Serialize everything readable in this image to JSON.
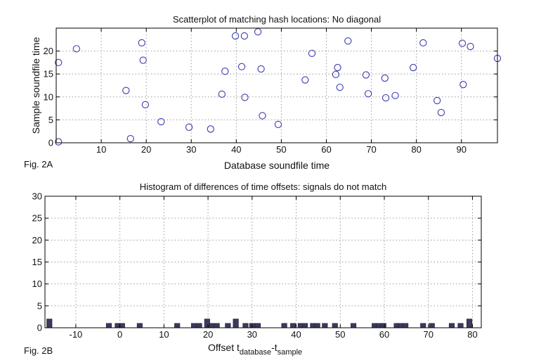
{
  "colors": {
    "marker": "#3b3bb0",
    "bar": "#3a3a5c",
    "grid": "#9a9a9a",
    "axis": "#000000"
  },
  "chart_data": [
    {
      "id": "fig2a",
      "type": "scatter",
      "figure_label": "Fig. 2A",
      "title": "Scatterplot of matching hash locations:  No diagonal",
      "xlabel": "Database soundfile time",
      "ylabel": "Sample soundfile time",
      "xlim": [
        0,
        98
      ],
      "ylim": [
        0,
        25
      ],
      "xticks": [
        10,
        20,
        30,
        40,
        50,
        60,
        70,
        80,
        90
      ],
      "yticks": [
        0,
        5,
        10,
        15,
        20
      ],
      "grid": true,
      "marker": "open-circle",
      "points": [
        [
          0.5,
          0.2
        ],
        [
          0.5,
          17.5
        ],
        [
          4.5,
          20.5
        ],
        [
          15.5,
          11.4
        ],
        [
          16.5,
          0.9
        ],
        [
          19,
          21.8
        ],
        [
          19.3,
          18
        ],
        [
          19.8,
          8.3
        ],
        [
          23.3,
          4.6
        ],
        [
          29.5,
          3.4
        ],
        [
          34.3,
          3
        ],
        [
          36.8,
          10.6
        ],
        [
          37.5,
          15.6
        ],
        [
          39.8,
          23.3
        ],
        [
          41.2,
          16.6
        ],
        [
          41.8,
          23.3
        ],
        [
          41.9,
          9.9
        ],
        [
          44.8,
          24.2
        ],
        [
          45.5,
          16.1
        ],
        [
          45.8,
          5.9
        ],
        [
          49.3,
          4
        ],
        [
          55.3,
          13.7
        ],
        [
          56.8,
          19.5
        ],
        [
          62.1,
          14.9
        ],
        [
          62.5,
          16.4
        ],
        [
          63,
          12.1
        ],
        [
          64.8,
          22.2
        ],
        [
          68.8,
          14.8
        ],
        [
          69.3,
          10.7
        ],
        [
          73,
          14.1
        ],
        [
          73.2,
          9.8
        ],
        [
          75.3,
          10.3
        ],
        [
          79.3,
          16.4
        ],
        [
          81.5,
          21.8
        ],
        [
          84.6,
          9.2
        ],
        [
          85.5,
          6.6
        ],
        [
          90.2,
          21.7
        ],
        [
          90.4,
          12.7
        ],
        [
          92,
          21
        ],
        [
          98,
          18.4
        ]
      ]
    },
    {
      "id": "fig2b",
      "type": "bar",
      "figure_label": "Fig. 2B",
      "title": "Histogram of differences of time offsets:  signals do not match",
      "xlabel_main": "Offset t",
      "xlabel_sub1": "database",
      "xlabel_mid": "-t",
      "xlabel_sub2": "sample",
      "xlim": [
        -17,
        82
      ],
      "ylim": [
        0,
        30
      ],
      "xticks": [
        -10,
        0,
        10,
        20,
        30,
        40,
        50,
        60,
        70,
        80
      ],
      "yticks": [
        0,
        5,
        10,
        15,
        20,
        25,
        30
      ],
      "grid": true,
      "x": [
        -16,
        -2.5,
        -0.5,
        0.5,
        4.5,
        13,
        16.8,
        18,
        19.8,
        21,
        22,
        24.5,
        26.3,
        28.5,
        30,
        31.3,
        37.3,
        39.3,
        41,
        42,
        43.8,
        44.8,
        46.5,
        48.8,
        53,
        57.8,
        58.8,
        59.8,
        62.8,
        63.8,
        64.8,
        68.8,
        70.8,
        75.3,
        77.3,
        79.3
      ],
      "values": [
        2,
        1,
        1,
        1,
        1,
        1,
        1,
        1,
        2,
        1,
        1,
        1,
        2,
        1,
        1,
        1,
        1,
        1,
        1,
        1,
        1,
        1,
        1,
        1,
        1,
        1,
        1,
        1,
        1,
        1,
        1,
        1,
        1,
        1,
        1,
        2
      ]
    }
  ]
}
